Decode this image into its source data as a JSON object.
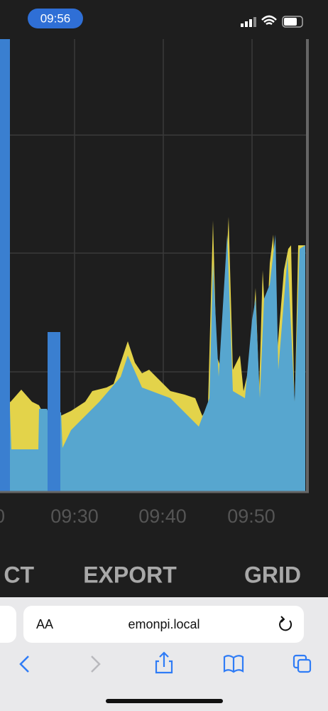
{
  "status_bar": {
    "time": "09:56"
  },
  "chart": {
    "x_tick_labels": [
      "0",
      "09:30",
      "09:40",
      "09:50"
    ]
  },
  "tabs": [
    "CT",
    "EXPORT",
    "GRID"
  ],
  "browser": {
    "text_size_button": "AA",
    "url": "emonpi.local"
  }
}
